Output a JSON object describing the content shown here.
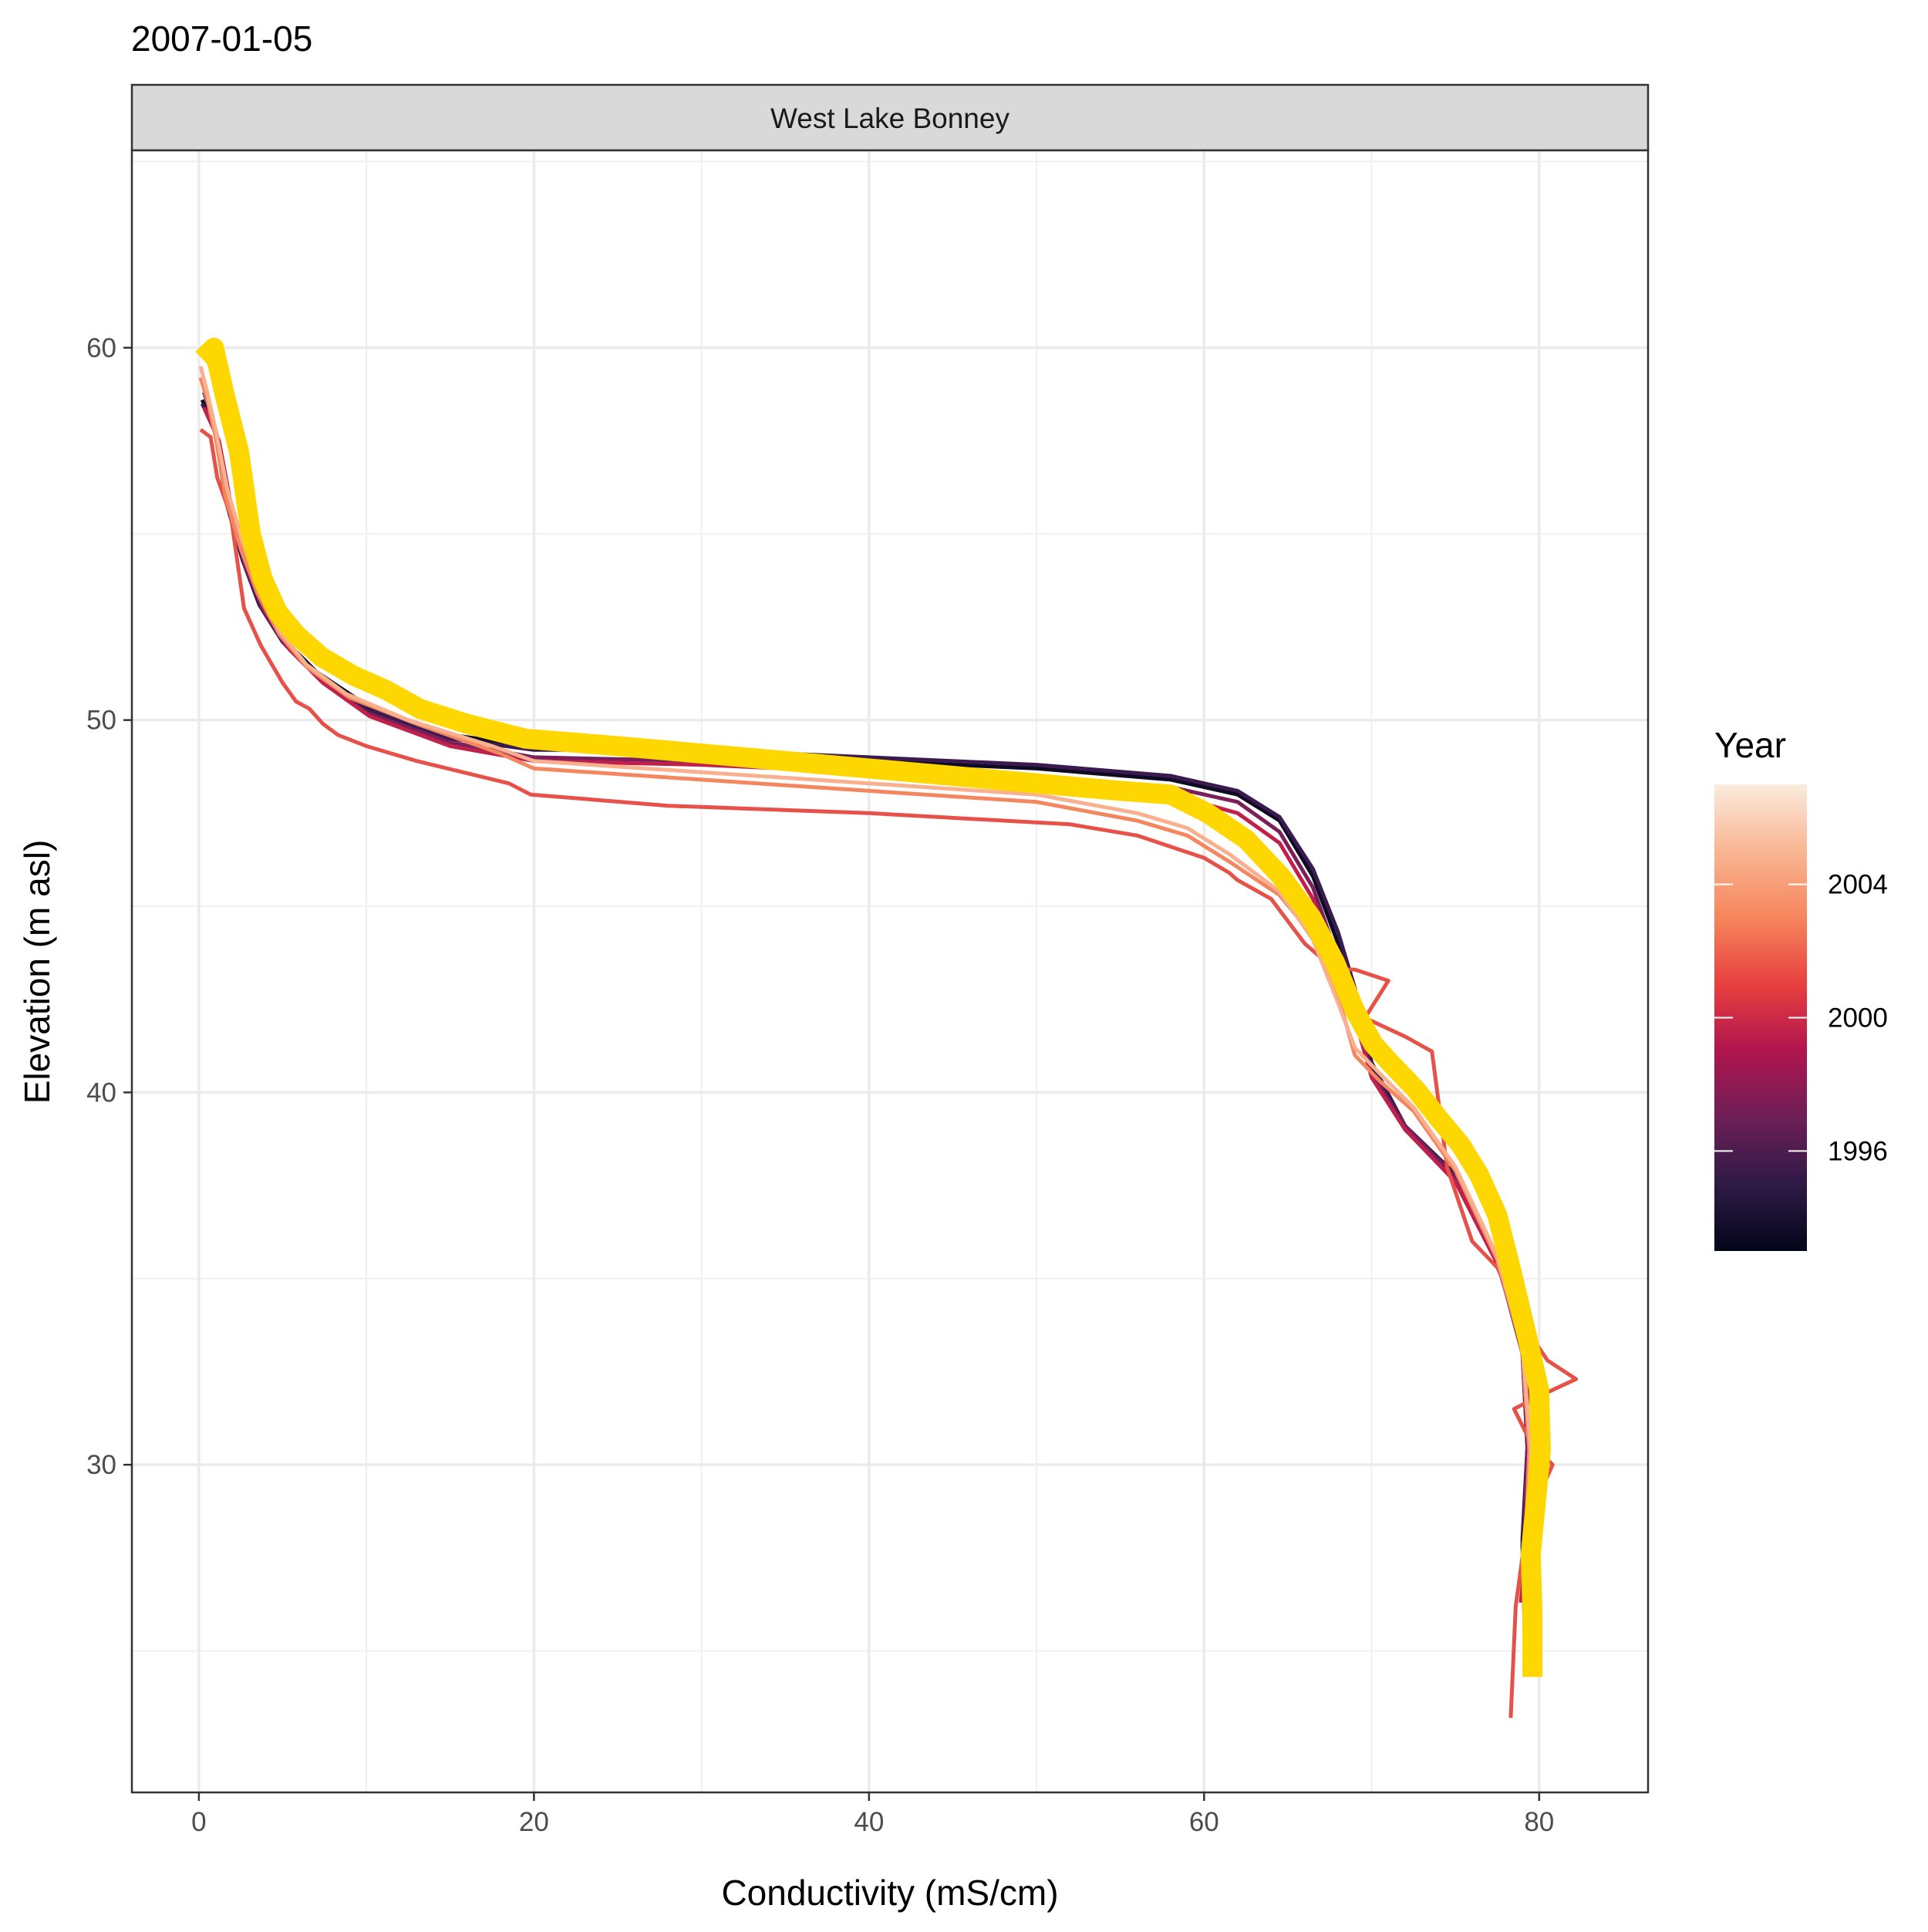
{
  "chart_data": {
    "type": "line",
    "title": "2007-01-05",
    "facet_label": "West Lake Bonney",
    "xlabel": "Conductivity (mS/cm)",
    "ylabel": "Elevation (m asl)",
    "xlim": [
      -4,
      86.5
    ],
    "ylim": [
      21.2,
      65.3
    ],
    "x_ticks": [
      0,
      20,
      40,
      60,
      80
    ],
    "y_ticks": [
      30,
      40,
      50,
      60
    ],
    "grid": true,
    "legend": {
      "title": "Year",
      "position": "right",
      "type": "colorbar",
      "range": [
        1993,
        2007
      ],
      "breaks": [
        1996,
        2000,
        2004
      ],
      "colors": [
        "#03051a",
        "#2e1a46",
        "#6e1f57",
        "#b0154e",
        "#e83f3f",
        "#f6855c",
        "#f9b593",
        "#faebdd"
      ]
    },
    "series": [
      {
        "year": 1994,
        "color": "#0e0c22",
        "points": [
          [
            0.2,
            58.6
          ],
          [
            0.6,
            58.2
          ],
          [
            1.0,
            57.8
          ],
          [
            1.6,
            56.0
          ],
          [
            2.6,
            54.4
          ],
          [
            3.6,
            53.2
          ],
          [
            5.0,
            52.2
          ],
          [
            7.0,
            51.3
          ],
          [
            10.0,
            50.4
          ],
          [
            15.0,
            49.6
          ],
          [
            20.0,
            49.3
          ],
          [
            30.0,
            49.1
          ],
          [
            40.0,
            48.9
          ],
          [
            50.0,
            48.7
          ],
          [
            58.0,
            48.4
          ],
          [
            62.0,
            48.0
          ],
          [
            64.5,
            47.3
          ],
          [
            66.5,
            45.8
          ],
          [
            68.0,
            44.0
          ],
          [
            69.0,
            42.5
          ],
          [
            70.0,
            40.6
          ],
          [
            72.0,
            39.0
          ],
          [
            75.0,
            37.7
          ],
          [
            77.5,
            35.5
          ],
          [
            79.0,
            33.0
          ],
          [
            79.3,
            30.5
          ],
          [
            79.0,
            28.0
          ],
          [
            79.2,
            24.8
          ]
        ]
      },
      {
        "year": 1996,
        "color": "#3b1a4f",
        "points": [
          [
            0.2,
            58.5
          ],
          [
            0.6,
            58.1
          ],
          [
            1.0,
            57.7
          ],
          [
            1.6,
            55.9
          ],
          [
            2.6,
            54.3
          ],
          [
            3.6,
            53.1
          ],
          [
            5.0,
            52.1
          ],
          [
            7.0,
            51.2
          ],
          [
            10.0,
            50.3
          ],
          [
            15.0,
            49.5
          ],
          [
            20.0,
            49.2
          ],
          [
            30.0,
            49.2
          ],
          [
            40.0,
            49.0
          ],
          [
            50.0,
            48.8
          ],
          [
            58.0,
            48.5
          ],
          [
            62.0,
            48.1
          ],
          [
            64.5,
            47.4
          ],
          [
            66.5,
            46.0
          ],
          [
            68.0,
            44.3
          ],
          [
            69.0,
            42.8
          ],
          [
            70.0,
            40.8
          ],
          [
            72.0,
            39.1
          ],
          [
            75.0,
            37.8
          ],
          [
            77.5,
            35.6
          ],
          [
            79.0,
            33.1
          ],
          [
            79.3,
            30.4
          ],
          [
            79.0,
            27.8
          ],
          [
            79.2,
            24.5
          ]
        ]
      },
      {
        "year": 1998,
        "color": "#7a1f5a",
        "points": [
          [
            0.3,
            58.8
          ],
          [
            0.7,
            58.3
          ],
          [
            1.1,
            57.6
          ],
          [
            1.8,
            55.7
          ],
          [
            2.8,
            54.1
          ],
          [
            3.8,
            53.0
          ],
          [
            5.2,
            52.0
          ],
          [
            7.2,
            51.1
          ],
          [
            10.0,
            50.2
          ],
          [
            15.0,
            49.4
          ],
          [
            20.0,
            49.0
          ],
          [
            30.0,
            48.9
          ],
          [
            40.0,
            48.7
          ],
          [
            50.0,
            48.5
          ],
          [
            58.0,
            48.2
          ],
          [
            62.0,
            47.8
          ],
          [
            64.5,
            47.0
          ],
          [
            66.5,
            45.5
          ],
          [
            68.0,
            43.6
          ],
          [
            69.0,
            42.2
          ],
          [
            70.0,
            40.5
          ],
          [
            72.0,
            39.1
          ],
          [
            75.0,
            37.7
          ],
          [
            77.5,
            35.5
          ],
          [
            79.0,
            33.0
          ],
          [
            79.3,
            30.5
          ],
          [
            79.1,
            28.0
          ],
          [
            79.3,
            25.0
          ]
        ]
      },
      {
        "year": 2000,
        "color": "#c0204a",
        "points": [
          [
            0.3,
            58.4
          ],
          [
            0.7,
            58.0
          ],
          [
            1.2,
            57.5
          ],
          [
            2.0,
            55.6
          ],
          [
            3.0,
            54.0
          ],
          [
            4.0,
            52.9
          ],
          [
            5.4,
            51.9
          ],
          [
            7.4,
            51.0
          ],
          [
            10.2,
            50.1
          ],
          [
            15.0,
            49.3
          ],
          [
            20.0,
            48.9
          ],
          [
            30.0,
            48.8
          ],
          [
            40.0,
            48.6
          ],
          [
            50.0,
            48.3
          ],
          [
            58.0,
            48.0
          ],
          [
            62.0,
            47.5
          ],
          [
            64.5,
            46.7
          ],
          [
            66.5,
            45.2
          ],
          [
            68.0,
            43.4
          ],
          [
            69.0,
            42.0
          ],
          [
            70.0,
            40.4
          ],
          [
            72.0,
            39.0
          ],
          [
            75.0,
            37.6
          ],
          [
            77.5,
            35.4
          ],
          [
            79.0,
            33.2
          ],
          [
            80.0,
            30.2
          ],
          [
            79.3,
            28.0
          ],
          [
            78.9,
            26.3
          ]
        ]
      },
      {
        "year": 2002,
        "color": "#e6524a",
        "points": [
          [
            0.1,
            57.8
          ],
          [
            0.7,
            57.6
          ],
          [
            1.1,
            56.5
          ],
          [
            1.9,
            55.5
          ],
          [
            2.7,
            53.0
          ],
          [
            3.7,
            52.0
          ],
          [
            5.0,
            51.0
          ],
          [
            5.8,
            50.5
          ],
          [
            6.6,
            50.3
          ],
          [
            7.4,
            49.9
          ],
          [
            8.3,
            49.6
          ],
          [
            10.0,
            49.3
          ],
          [
            13.0,
            48.9
          ],
          [
            18.5,
            48.3
          ],
          [
            19.8,
            48.0
          ],
          [
            28.0,
            47.7
          ],
          [
            40.0,
            47.5
          ],
          [
            52.0,
            47.2
          ],
          [
            56.0,
            46.9
          ],
          [
            58.0,
            46.6
          ],
          [
            60.0,
            46.3
          ],
          [
            61.5,
            45.9
          ],
          [
            62.0,
            45.7
          ],
          [
            64.0,
            45.2
          ],
          [
            66.0,
            44.0
          ],
          [
            67.8,
            43.3
          ],
          [
            69.0,
            43.3
          ],
          [
            71.0,
            43.0
          ],
          [
            69.6,
            42.0
          ],
          [
            72.0,
            41.5
          ],
          [
            73.6,
            41.1
          ],
          [
            74.5,
            38.0
          ],
          [
            76.0,
            36.0
          ],
          [
            77.5,
            35.3
          ],
          [
            79.0,
            33.8
          ],
          [
            80.5,
            32.8
          ],
          [
            82.2,
            32.3
          ],
          [
            79.8,
            31.8
          ],
          [
            78.5,
            31.5
          ],
          [
            79.5,
            30.6
          ],
          [
            80.8,
            30.0
          ],
          [
            79.3,
            28.5
          ],
          [
            78.6,
            26.2
          ],
          [
            78.3,
            23.2
          ]
        ]
      },
      {
        "year": 2004,
        "color": "#f4875f",
        "points": [
          [
            0.1,
            59.2
          ],
          [
            0.5,
            58.6
          ],
          [
            1.0,
            57.6
          ],
          [
            1.6,
            56.0
          ],
          [
            2.5,
            54.6
          ],
          [
            3.5,
            53.4
          ],
          [
            4.8,
            52.3
          ],
          [
            6.5,
            51.4
          ],
          [
            9.0,
            50.6
          ],
          [
            13.0,
            49.9
          ],
          [
            18.0,
            49.1
          ],
          [
            20.0,
            48.7
          ],
          [
            30.0,
            48.4
          ],
          [
            40.0,
            48.1
          ],
          [
            50.0,
            47.8
          ],
          [
            56.0,
            47.3
          ],
          [
            59.0,
            46.9
          ],
          [
            61.5,
            46.2
          ],
          [
            64.5,
            45.3
          ],
          [
            66.5,
            44.2
          ],
          [
            68.0,
            42.6
          ],
          [
            69.0,
            41.0
          ],
          [
            70.5,
            40.3
          ],
          [
            72.5,
            39.5
          ],
          [
            75.0,
            37.9
          ],
          [
            77.5,
            35.5
          ],
          [
            79.0,
            33.1
          ],
          [
            79.4,
            30.4
          ],
          [
            79.2,
            28.0
          ],
          [
            79.3,
            25.0
          ]
        ]
      },
      {
        "year": 2006,
        "color": "#f9b08f",
        "points": [
          [
            0.1,
            59.5
          ],
          [
            0.5,
            58.8
          ],
          [
            1.0,
            57.8
          ],
          [
            1.7,
            56.2
          ],
          [
            2.6,
            54.8
          ],
          [
            3.6,
            53.5
          ],
          [
            4.8,
            52.4
          ],
          [
            6.4,
            51.5
          ],
          [
            8.8,
            50.7
          ],
          [
            12.5,
            50.0
          ],
          [
            17.5,
            49.3
          ],
          [
            20.0,
            48.9
          ],
          [
            30.0,
            48.6
          ],
          [
            40.0,
            48.3
          ],
          [
            50.0,
            48.0
          ],
          [
            56.0,
            47.5
          ],
          [
            59.0,
            47.1
          ],
          [
            61.5,
            46.4
          ],
          [
            64.5,
            45.4
          ],
          [
            66.5,
            44.1
          ],
          [
            68.0,
            42.4
          ],
          [
            69.0,
            41.2
          ],
          [
            70.5,
            40.5
          ],
          [
            72.5,
            39.6
          ],
          [
            75.0,
            38.0
          ],
          [
            77.5,
            35.6
          ],
          [
            79.0,
            33.2
          ],
          [
            79.5,
            30.4
          ],
          [
            79.3,
            28.0
          ],
          [
            79.4,
            25.0
          ]
        ]
      }
    ],
    "highlight": {
      "label": "2007-01-05",
      "color": "#ffd700",
      "points": [
        [
          0.2,
          59.7
        ],
        [
          0.9,
          60.0
        ],
        [
          1.5,
          58.8
        ],
        [
          2.4,
          57.2
        ],
        [
          3.1,
          55.0
        ],
        [
          3.8,
          53.8
        ],
        [
          4.7,
          52.9
        ],
        [
          5.8,
          52.3
        ],
        [
          7.3,
          51.7
        ],
        [
          9.2,
          51.2
        ],
        [
          11.2,
          50.8
        ],
        [
          13.2,
          50.3
        ],
        [
          16.0,
          49.9
        ],
        [
          19.5,
          49.5
        ],
        [
          25.0,
          49.3
        ],
        [
          30.0,
          49.1
        ],
        [
          35.0,
          48.9
        ],
        [
          40.0,
          48.7
        ],
        [
          45.0,
          48.5
        ],
        [
          50.0,
          48.3
        ],
        [
          55.0,
          48.1
        ],
        [
          58.0,
          48.0
        ],
        [
          60.2,
          47.5
        ],
        [
          62.5,
          46.8
        ],
        [
          64.6,
          45.8
        ],
        [
          66.4,
          44.7
        ],
        [
          67.8,
          43.5
        ],
        [
          69.0,
          42.2
        ],
        [
          70.1,
          41.3
        ],
        [
          71.1,
          40.8
        ],
        [
          72.6,
          40.1
        ],
        [
          74.0,
          39.3
        ],
        [
          75.3,
          38.6
        ],
        [
          76.4,
          37.8
        ],
        [
          77.5,
          36.7
        ],
        [
          78.4,
          35.1
        ],
        [
          79.3,
          33.4
        ],
        [
          80.0,
          32.0
        ],
        [
          80.1,
          30.4
        ],
        [
          79.8,
          29.0
        ],
        [
          79.5,
          27.6
        ],
        [
          79.6,
          26.0
        ],
        [
          79.6,
          24.3
        ]
      ]
    }
  }
}
